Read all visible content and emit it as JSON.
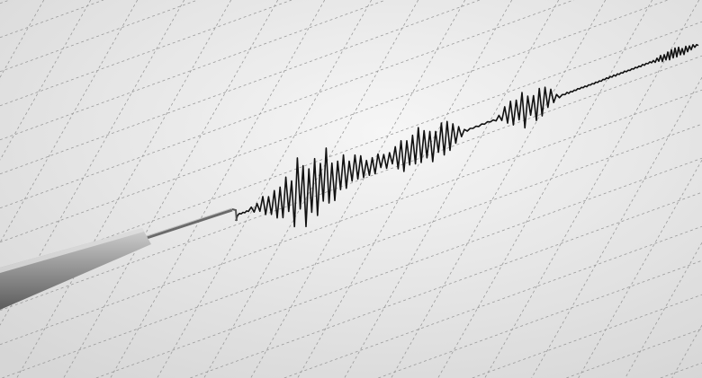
{
  "scene": {
    "subject": "seismograph",
    "colors": {
      "paper_light": "#f4f4f4",
      "paper_dark": "#d9d9d9",
      "grid": "#9a9a9a",
      "trace": "#111111",
      "pen_body": "#8d8d8d",
      "pen_highlight": "#c9c9c9",
      "needle": "#6a6a6a"
    },
    "icons": [
      "seismograph-pen-icon"
    ]
  }
}
